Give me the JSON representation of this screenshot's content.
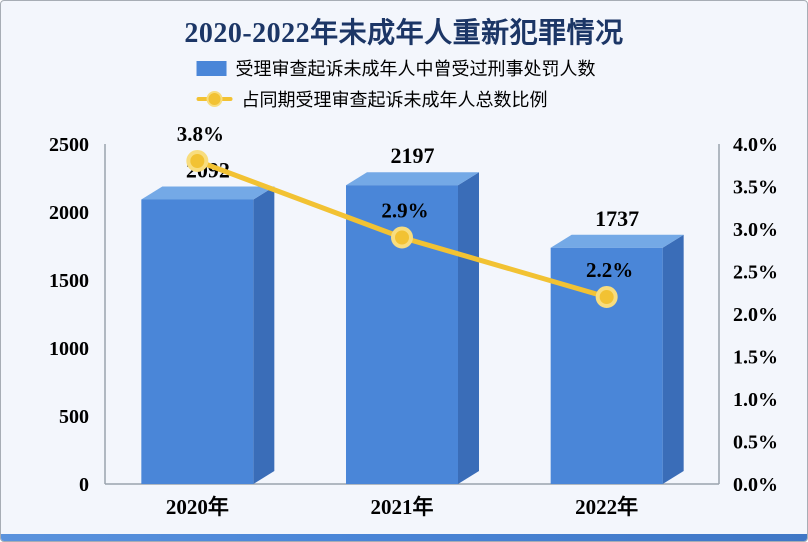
{
  "title": {
    "text": "2020-2022年未成年人重新犯罪情况"
  },
  "legend": {
    "bar_series_label": "受理审查起诉未成年人中曾受过刑事处罚人数",
    "line_series_label": "占同期受理审查起诉未成年人总数比例"
  },
  "colors": {
    "background": "#f3f6fc",
    "title": "#1c3666",
    "bar_front": "#4a86d8",
    "bar_top": "#74a9e6",
    "bar_side": "#3a6db8",
    "line": "#f2c233",
    "marker_ring": "#f8dd7e",
    "axis": "#9aa3ad",
    "bottom_strip": "#4a86d8"
  },
  "chart_data": {
    "type": "bar",
    "title": "2020-2022年未成年人重新犯罪情况",
    "categories": [
      "2020年",
      "2021年",
      "2022年"
    ],
    "series": [
      {
        "name": "受理审查起诉未成年人中曾受过刑事处罚人数",
        "type": "bar",
        "axis": "left",
        "values": [
          2092,
          2197,
          1737
        ],
        "labels": [
          "2092",
          "2197",
          "1737"
        ]
      },
      {
        "name": "占同期受理审查起诉未成年人总数比例",
        "type": "line",
        "axis": "right",
        "values": [
          3.8,
          2.9,
          2.2
        ],
        "labels": [
          "3.8%",
          "2.9%",
          "2.2%"
        ]
      }
    ],
    "left_axis": {
      "min": 0,
      "max": 2500,
      "step": 500,
      "ticks": [
        "0",
        "500",
        "1000",
        "1500",
        "2000",
        "2500"
      ]
    },
    "right_axis": {
      "min": 0,
      "max": 4,
      "step": 0.5,
      "ticks": [
        "0.0%",
        "0.5%",
        "1.0%",
        "1.5%",
        "2.0%",
        "2.5%",
        "3.0%",
        "3.5%",
        "4.0%"
      ]
    },
    "legend_position": "top",
    "grid": false,
    "style": "3d-bars"
  }
}
